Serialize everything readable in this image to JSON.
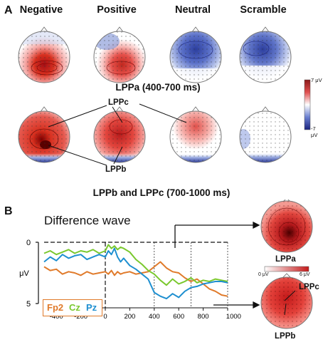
{
  "panel_a": {
    "letter": "A",
    "conditions": [
      "Negative",
      "Positive",
      "Neutral",
      "Scramble"
    ],
    "caption_top": "LPPa (400-700 ms)",
    "caption_bottom": "LPPb and LPPc (700-1000 ms)",
    "callout_top": "LPPc",
    "callout_bottom": "LPPb",
    "colorbar": {
      "max_label": "7 μV",
      "min_label": "-7 μV",
      "max_color": "#8b1a1a",
      "min_color": "#1a237e"
    }
  },
  "panel_b": {
    "letter": "B",
    "title": "Difference wave",
    "legend": [
      {
        "name": "Fp2",
        "color": "#e07a2a"
      },
      {
        "name": "Cz",
        "color": "#7ac82e"
      },
      {
        "name": "Pz",
        "color": "#1e8fd0"
      }
    ],
    "inset_top_label": "LPPa",
    "inset_colorbar_min": "0 μV",
    "inset_colorbar_max": "6 μV",
    "inset_bottom_callout_top": "LPPc",
    "inset_bottom_callout_bottom": "LPPb"
  },
  "chart_data": {
    "type": "line",
    "title": "Difference wave",
    "xlabel": "ms",
    "ylabel": "μV",
    "xlim": [
      -500,
      1000
    ],
    "ylim": [
      0,
      5
    ],
    "y_inverted": true,
    "x_ticks": [
      "-400",
      "-200",
      "0",
      "200",
      "400",
      "600",
      "800",
      "1000 ms"
    ],
    "y_ticks": [
      "0",
      "5"
    ],
    "vertical_markers": [
      400,
      700,
      1000
    ],
    "x": [
      -500,
      -450,
      -400,
      -350,
      -300,
      -250,
      -200,
      -150,
      -100,
      -50,
      0,
      25,
      50,
      75,
      100,
      125,
      150,
      200,
      250,
      300,
      350,
      400,
      450,
      500,
      550,
      600,
      650,
      700,
      750,
      800,
      850,
      900,
      950,
      1000
    ],
    "series": [
      {
        "name": "Fp2",
        "color": "#e07a2a",
        "values": [
          2.0,
          2.3,
          2.2,
          2.6,
          2.4,
          2.5,
          2.7,
          2.4,
          2.6,
          2.5,
          2.4,
          2.6,
          2.3,
          2.7,
          2.4,
          2.6,
          2.5,
          2.4,
          2.6,
          2.5,
          2.4,
          2.0,
          1.6,
          2.1,
          2.4,
          2.5,
          2.9,
          3.2,
          3.0,
          3.4,
          3.8,
          4.0,
          4.3,
          4.4
        ]
      },
      {
        "name": "Cz",
        "color": "#7ac82e",
        "values": [
          0.9,
          0.7,
          1.0,
          0.8,
          0.6,
          0.9,
          0.7,
          0.8,
          0.6,
          0.9,
          0.7,
          0.2,
          0.5,
          0.3,
          0.6,
          0.4,
          0.5,
          0.8,
          1.4,
          1.8,
          2.3,
          2.6,
          3.1,
          3.5,
          3.0,
          3.4,
          3.2,
          2.9,
          3.3,
          3.1,
          3.2,
          3.0,
          3.1,
          3.2
        ]
      },
      {
        "name": "Pz",
        "color": "#1e8fd0",
        "values": [
          1.6,
          1.2,
          1.5,
          1.0,
          1.3,
          1.1,
          1.0,
          1.4,
          1.2,
          1.0,
          1.2,
          0.7,
          1.0,
          0.5,
          1.2,
          1.6,
          1.3,
          1.9,
          2.2,
          2.6,
          3.0,
          4.1,
          4.4,
          4.6,
          4.2,
          4.5,
          4.0,
          3.7,
          3.6,
          3.4,
          3.3,
          3.2,
          3.2,
          3.3
        ]
      }
    ]
  }
}
